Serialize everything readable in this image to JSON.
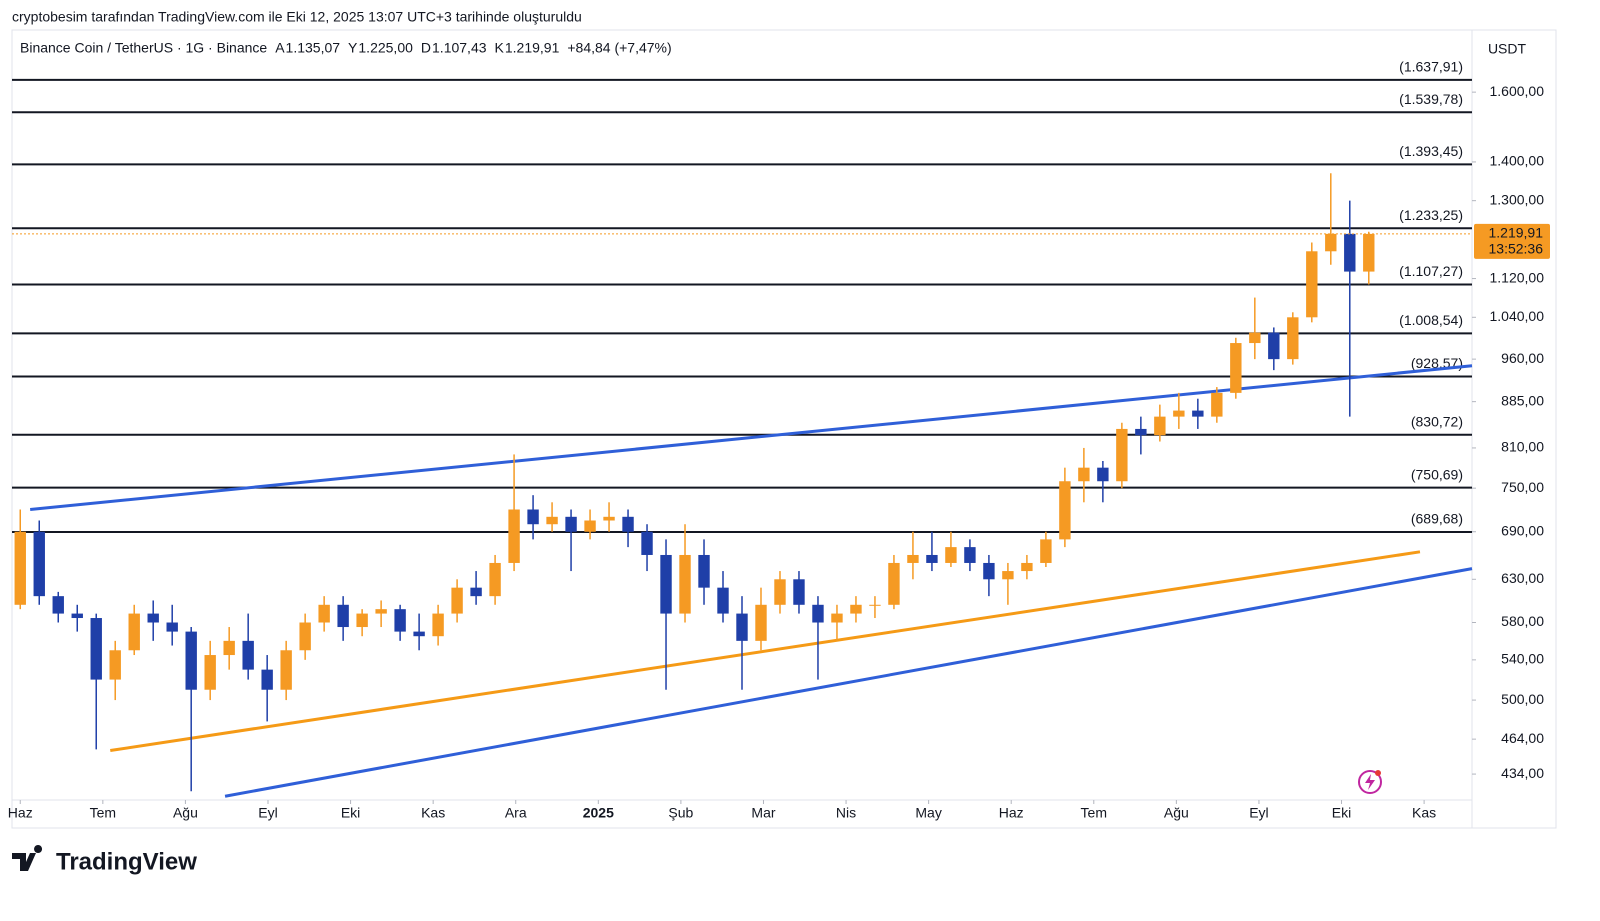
{
  "caption": "cryptobesim tarafından TradingView.com ile Eki 12, 2025 13:07 UTC+3 tarihinde oluşturuldu",
  "footer": {
    "brand": "TradingView"
  },
  "chart_data": {
    "type": "candlestick",
    "title": "Binance Coin / TetherUS · 1G · Binance",
    "ohlc_header": [
      {
        "key": "A",
        "value": 1135.07,
        "label": "1.135,07"
      },
      {
        "key": "Y",
        "value": 1225.0,
        "label": "1.225,00"
      },
      {
        "key": "D",
        "value": 1107.43,
        "label": "1.107,43"
      },
      {
        "key": "K",
        "value": 1219.91,
        "label": "1.219,91"
      }
    ],
    "change": "+84,84 (+7,47%)",
    "currency": "USDT",
    "last_price": {
      "value": 1219.91,
      "label": "1.219,91"
    },
    "countdown": "13:52:36",
    "up_color": "#f59a23",
    "down_color": "#1f3fa8",
    "log_y": true,
    "xlim": [
      -0.1,
      17.58
    ],
    "ylim": [
      413,
      1802
    ],
    "xticks": [
      {
        "value": 0,
        "label": "Haz"
      },
      {
        "value": 1,
        "label": "Tem"
      },
      {
        "value": 2,
        "label": "Ağu"
      },
      {
        "value": 3,
        "label": "Eyl"
      },
      {
        "value": 4,
        "label": "Eki"
      },
      {
        "value": 5,
        "label": "Kas"
      },
      {
        "value": 6,
        "label": "Ara"
      },
      {
        "value": 7,
        "label": "2025"
      },
      {
        "value": 8,
        "label": "Şub"
      },
      {
        "value": 9,
        "label": "Mar"
      },
      {
        "value": 10,
        "label": "Nis"
      },
      {
        "value": 11,
        "label": "May"
      },
      {
        "value": 12,
        "label": "Haz"
      },
      {
        "value": 13,
        "label": "Tem"
      },
      {
        "value": 14,
        "label": "Ağu"
      },
      {
        "value": 15,
        "label": "Eyl"
      },
      {
        "value": 16,
        "label": "Eki"
      },
      {
        "value": 17,
        "label": "Kas"
      }
    ],
    "yticks": [
      {
        "value": 1600,
        "label": "1.600,00"
      },
      {
        "value": 1400,
        "label": "1.400,00"
      },
      {
        "value": 1300,
        "label": "1.300,00"
      },
      {
        "value": 1120,
        "label": "1.120,00"
      },
      {
        "value": 1040,
        "label": "1.040,00"
      },
      {
        "value": 960,
        "label": "960,00"
      },
      {
        "value": 885,
        "label": "885,00"
      },
      {
        "value": 810,
        "label": "810,00"
      },
      {
        "value": 750,
        "label": "750,00"
      },
      {
        "value": 690,
        "label": "690,00"
      },
      {
        "value": 630,
        "label": "630,00"
      },
      {
        "value": 580,
        "label": "580,00"
      },
      {
        "value": 540,
        "label": "540,00"
      },
      {
        "value": 500,
        "label": "500,00"
      },
      {
        "value": 464,
        "label": "464,00"
      },
      {
        "value": 434,
        "label": "434,00"
      }
    ],
    "levels": [
      {
        "value": 1637.91,
        "label": "(1.637,91)"
      },
      {
        "value": 1539.78,
        "label": "(1.539,78)"
      },
      {
        "value": 1393.45,
        "label": "(1.393,45)"
      },
      {
        "value": 1233.25,
        "label": "(1.233,25)"
      },
      {
        "value": 1107.27,
        "label": "(1.107,27)"
      },
      {
        "value": 1008.54,
        "label": "(1.008,54)"
      },
      {
        "value": 928.57,
        "label": "(928,57)"
      },
      {
        "value": 830.72,
        "label": "(830,72)"
      },
      {
        "value": 750.69,
        "label": "(750,69)"
      },
      {
        "value": 689.68,
        "label": "(689,68)"
      }
    ],
    "trendlines": [
      {
        "color": "#2f5fd8",
        "x": [
          0.12,
          17.58
        ],
        "y": [
          720,
          948
        ]
      },
      {
        "color": "#f59a16",
        "x": [
          1.09,
          16.95
        ],
        "y": [
          454,
          664
        ]
      },
      {
        "color": "#2f5fd8",
        "x": [
          2.48,
          17.58
        ],
        "y": [
          416,
          643
        ]
      }
    ],
    "x": [
      0,
      0.23,
      0.46,
      0.69,
      0.92,
      1.15,
      1.38,
      1.61,
      1.84,
      2.07,
      2.3,
      2.53,
      2.76,
      2.99,
      3.22,
      3.45,
      3.68,
      3.91,
      4.14,
      4.37,
      4.6,
      4.83,
      5.06,
      5.29,
      5.52,
      5.75,
      5.98,
      6.21,
      6.44,
      6.67,
      6.9,
      7.13,
      7.36,
      7.59,
      7.82,
      8.05,
      8.28,
      8.51,
      8.74,
      8.97,
      9.2,
      9.43,
      9.66,
      9.89,
      10.12,
      10.35,
      10.58,
      10.81,
      11.04,
      11.27,
      11.5,
      11.73,
      11.96,
      12.19,
      12.42,
      12.65,
      12.88,
      13.11,
      13.34,
      13.57,
      13.8,
      14.03,
      14.26,
      14.49,
      14.72,
      14.95,
      15.18,
      15.41,
      15.64,
      15.87,
      16.1,
      16.33
    ],
    "open": [
      600,
      690,
      610,
      590,
      585,
      520,
      550,
      590,
      580,
      570,
      510,
      545,
      560,
      530,
      510,
      550,
      580,
      600,
      575,
      590,
      595,
      570,
      565,
      590,
      620,
      610,
      650,
      720,
      700,
      710,
      690,
      705,
      710,
      690,
      660,
      590,
      660,
      620,
      590,
      560,
      600,
      630,
      600,
      580,
      590,
      600,
      600,
      650,
      660,
      650,
      670,
      650,
      630,
      640,
      650,
      680,
      760,
      780,
      760,
      840,
      830,
      860,
      870,
      860,
      900,
      990,
      1010,
      960,
      1040,
      1180,
      1220,
      1135.07
    ],
    "high": [
      720,
      705,
      615,
      600,
      590,
      560,
      600,
      605,
      600,
      575,
      560,
      575,
      590,
      545,
      560,
      590,
      610,
      610,
      595,
      605,
      600,
      590,
      600,
      630,
      640,
      660,
      800,
      740,
      730,
      720,
      720,
      730,
      720,
      700,
      680,
      700,
      680,
      640,
      610,
      620,
      640,
      640,
      610,
      600,
      610,
      610,
      660,
      690,
      690,
      690,
      680,
      660,
      650,
      660,
      690,
      780,
      810,
      790,
      850,
      860,
      880,
      900,
      890,
      910,
      1000,
      1080,
      1020,
      1050,
      1200,
      1370,
      1300,
      1225
    ],
    "low": [
      595,
      600,
      580,
      570,
      455,
      500,
      545,
      560,
      555,
      420,
      500,
      530,
      520,
      480,
      500,
      540,
      570,
      560,
      565,
      575,
      560,
      550,
      555,
      580,
      600,
      600,
      640,
      680,
      690,
      640,
      680,
      690,
      670,
      640,
      510,
      580,
      600,
      580,
      510,
      550,
      590,
      590,
      520,
      560,
      580,
      585,
      595,
      630,
      640,
      645,
      640,
      610,
      600,
      630,
      645,
      670,
      730,
      730,
      750,
      800,
      820,
      840,
      840,
      850,
      890,
      960,
      940,
      950,
      1030,
      1150,
      860,
      1107.43
    ],
    "close": [
      690,
      610,
      590,
      585,
      520,
      550,
      590,
      580,
      570,
      510,
      545,
      560,
      530,
      510,
      550,
      580,
      600,
      575,
      590,
      595,
      570,
      565,
      590,
      620,
      610,
      650,
      720,
      700,
      710,
      690,
      705,
      710,
      690,
      660,
      590,
      660,
      620,
      590,
      560,
      600,
      630,
      600,
      580,
      590,
      600,
      600,
      650,
      660,
      650,
      670,
      650,
      630,
      640,
      650,
      680,
      760,
      780,
      760,
      840,
      830,
      860,
      870,
      860,
      900,
      990,
      1010,
      960,
      1040,
      1180,
      1220,
      1135.07,
      1219.91
    ]
  }
}
